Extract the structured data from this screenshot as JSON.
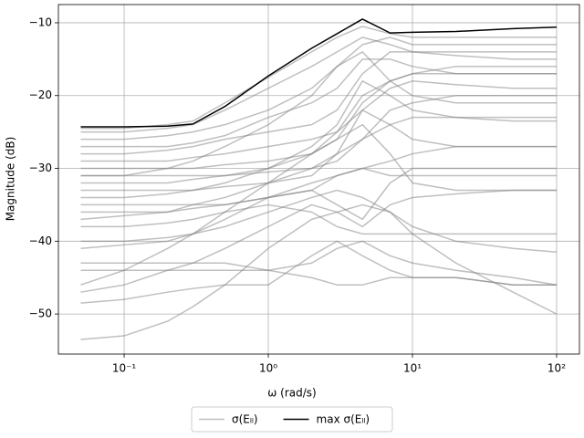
{
  "chart_data": {
    "type": "line",
    "xlabel": "ω (rad/s)",
    "ylabel": "Magnitude (dB)",
    "xscale": "log",
    "grid": true,
    "legend": "lower center outside",
    "xlim": [
      0.035,
      144
    ],
    "ylim": [
      -55.5,
      -7.5
    ],
    "xticks": [
      {
        "value": 0.1,
        "label": "10⁻¹"
      },
      {
        "value": 1,
        "label": "10⁰"
      },
      {
        "value": 10,
        "label": "10¹"
      },
      {
        "value": 100,
        "label": "10²"
      }
    ],
    "yticks": [
      {
        "value": -10,
        "label": "−10"
      },
      {
        "value": -20,
        "label": "−20"
      },
      {
        "value": -30,
        "label": "−30"
      },
      {
        "value": -40,
        "label": "−40"
      },
      {
        "value": -50,
        "label": "−50"
      }
    ],
    "x": [
      0.05,
      0.1,
      0.2,
      0.3,
      0.5,
      1,
      2,
      3,
      4.5,
      7,
      10,
      20,
      50,
      100
    ],
    "series": [
      {
        "name": "σ(Eₗₗ)",
        "color": "#808080",
        "values": [
          [
            -25,
            -25,
            -24.5,
            -24,
            -22,
            -19,
            -16,
            -14,
            -12,
            -13,
            -14,
            -14.5,
            -15,
            -15
          ],
          [
            -26,
            -26,
            -25.5,
            -25,
            -24,
            -22,
            -19,
            -16,
            -13,
            -12,
            -13,
            -13,
            -13,
            -13
          ],
          [
            -27,
            -27,
            -27,
            -26.5,
            -25.5,
            -23,
            -21,
            -19,
            -15,
            -15,
            -16,
            -17,
            -17,
            -17
          ],
          [
            -28,
            -28,
            -27.5,
            -27,
            -26,
            -25,
            -24,
            -22,
            -17,
            -14,
            -14,
            -14,
            -14,
            -14
          ],
          [
            -29,
            -29,
            -29,
            -28.5,
            -28,
            -27,
            -26,
            -25,
            -22,
            -19,
            -18,
            -18.5,
            -19,
            -19
          ],
          [
            -30,
            -30,
            -30,
            -30,
            -29.5,
            -29,
            -28,
            -26,
            -21,
            -18,
            -17,
            -16,
            -16,
            -16
          ],
          [
            -31,
            -31,
            -31,
            -31,
            -31,
            -30.5,
            -30,
            -29,
            -26,
            -22,
            -21,
            -20,
            -20,
            -20
          ],
          [
            -32,
            -32,
            -32,
            -31.5,
            -31,
            -30,
            -28,
            -26,
            -24,
            -28,
            -32,
            -33,
            -33,
            -33
          ],
          [
            -33,
            -33,
            -33,
            -33,
            -32.5,
            -32,
            -31,
            -28,
            -22,
            -24,
            -26,
            -27,
            -27,
            -27
          ],
          [
            -34,
            -34,
            -33.5,
            -33,
            -32,
            -30,
            -27,
            -24,
            -18,
            -20,
            -22,
            -23,
            -23.5,
            -23.5
          ],
          [
            -35,
            -35,
            -35,
            -35,
            -35,
            -34,
            -33,
            -31,
            -30,
            -31,
            -31,
            -31,
            -31,
            -31
          ],
          [
            -36,
            -36,
            -36,
            -35.5,
            -35,
            -34,
            -33,
            -35,
            -37,
            -32,
            -30,
            -30,
            -30,
            -30
          ],
          [
            -37,
            -36.5,
            -36,
            -35,
            -34,
            -32,
            -30,
            -28,
            -26,
            -24,
            -23,
            -23,
            -23,
            -23
          ],
          [
            -38,
            -38,
            -37.5,
            -37,
            -36,
            -35,
            -36,
            -38,
            -39,
            -39,
            -39,
            -39,
            -39,
            -39
          ],
          [
            -40,
            -40,
            -39.5,
            -39,
            -38,
            -36,
            -34,
            -33,
            -34,
            -36,
            -38,
            -40,
            -41,
            -41.5
          ],
          [
            -41,
            -40.5,
            -40,
            -39,
            -37,
            -34,
            -32,
            -31,
            -30,
            -29,
            -28,
            -27,
            -27,
            -27
          ],
          [
            -43,
            -43,
            -43,
            -43,
            -43,
            -44,
            -43,
            -41,
            -40,
            -42,
            -43,
            -44,
            -45,
            -46
          ],
          [
            -44,
            -44,
            -44,
            -44,
            -44,
            -44,
            -45,
            -46,
            -46,
            -45,
            -45,
            -45,
            -46,
            -46
          ],
          [
            -46,
            -44,
            -41,
            -39,
            -36,
            -32,
            -28,
            -25,
            -20,
            -18,
            -17,
            -17,
            -17,
            -17
          ],
          [
            -47,
            -46,
            -44,
            -43,
            -41,
            -38,
            -35,
            -36,
            -38,
            -35,
            -34,
            -33.5,
            -33,
            -33
          ],
          [
            -48.5,
            -48,
            -47,
            -46.5,
            -46,
            -46,
            -42,
            -40,
            -42,
            -44,
            -45,
            -45,
            -46,
            -46
          ],
          [
            -53.5,
            -53,
            -51,
            -49,
            -46,
            -41,
            -37,
            -36,
            -35,
            -36,
            -39,
            -43,
            -47,
            -50
          ],
          [
            -24.5,
            -24.5,
            -24,
            -23.5,
            -21,
            -17.5,
            -14,
            -12,
            -10.5,
            -11.5,
            -12,
            -12,
            -12,
            -12
          ],
          [
            -31,
            -31,
            -30,
            -29,
            -27,
            -24,
            -20,
            -16,
            -14,
            -18,
            -20,
            -21,
            -21,
            -21
          ]
        ]
      },
      {
        "name": "max σ(Eₗₗ)",
        "color": "#000000",
        "values": [
          -24.3,
          -24.3,
          -24.2,
          -23.9,
          -21.5,
          -17.3,
          -13.5,
          -11.5,
          -9.5,
          -11.4,
          -11.3,
          -11.2,
          -10.8,
          -10.6
        ]
      }
    ]
  }
}
